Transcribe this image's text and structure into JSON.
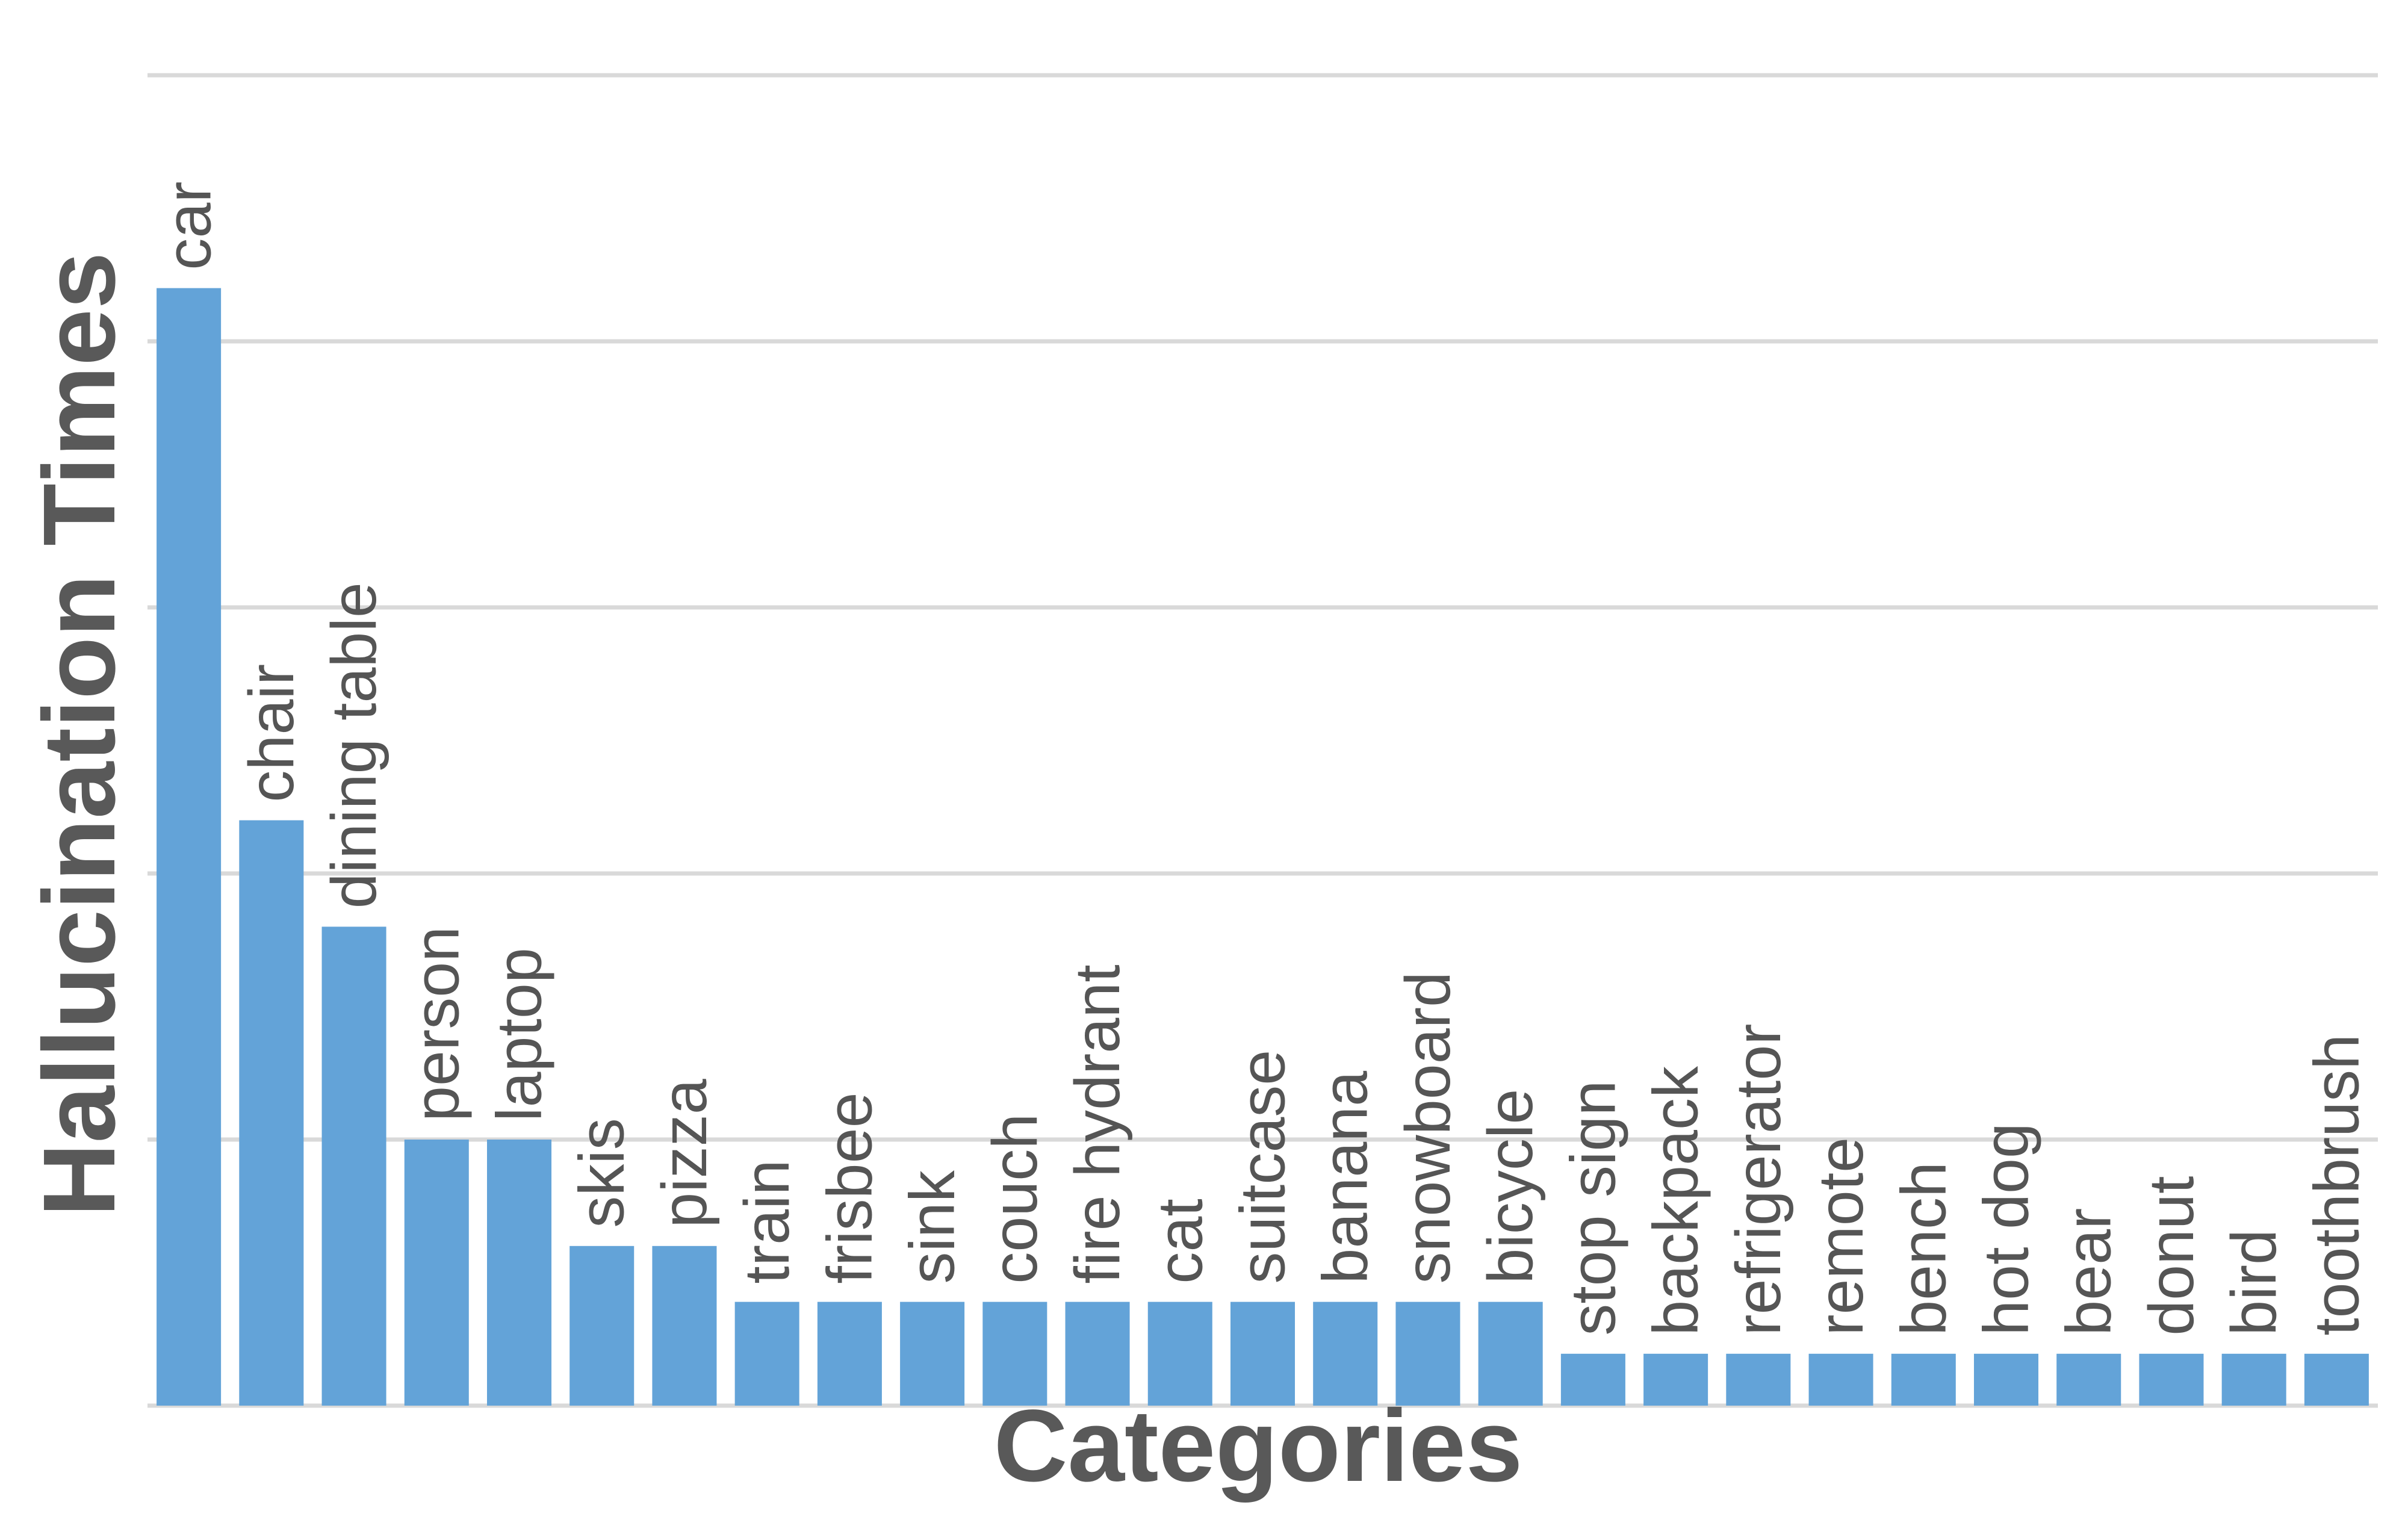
{
  "chart_data": {
    "type": "bar",
    "xlabel": "Categories",
    "ylabel": "Hallucination Times",
    "grid": true,
    "y_tick_labels_shown": false,
    "ylim": [
      0,
      10
    ],
    "categories": [
      "car",
      "chair",
      "dining table",
      "person",
      "laptop",
      "skis",
      "pizza",
      "train",
      "frisbee",
      "sink",
      "couch",
      "fire hydrant",
      "cat",
      "suitcase",
      "banana",
      "snowboard",
      "bicycle",
      "stop sign",
      "backpack",
      "refrigerator",
      "remote",
      "bench",
      "hot dog",
      "bear",
      "donut",
      "bird",
      "toothbrush"
    ],
    "values": [
      8.4,
      4.4,
      3.6,
      2,
      2,
      1.2,
      1.2,
      0.78,
      0.78,
      0.78,
      0.78,
      0.78,
      0.78,
      0.78,
      0.78,
      0.78,
      0.78,
      0.39,
      0.39,
      0.39,
      0.39,
      0.39,
      0.39,
      0.39,
      0.39,
      0.39,
      0.39
    ],
    "colors": {
      "bar": "#63a3d8",
      "grid": "#d9d9d9",
      "text": "#555555"
    }
  }
}
